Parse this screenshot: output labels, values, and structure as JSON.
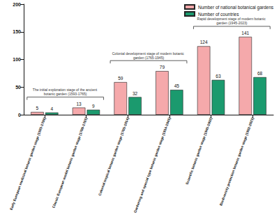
{
  "chart_data": {
    "type": "bar",
    "categories": [
      "Early European medicinal botanic garden stage (1593-1700)",
      "Classic European model botanic garden stage (1700-1765)",
      "Colonial tropical botanic garden stage (1765-1914)",
      "Gardening and special type botanic garden stage (1914-1945)",
      "Scientific botanic garden stage (1945-1992)",
      "Biodiversity protection botanic garden stage (1992-2023)"
    ],
    "series": [
      {
        "name": "Number of national botanical gardens",
        "color": "#f5a9ab",
        "values": [
          5,
          13,
          59,
          79,
          124,
          141
        ]
      },
      {
        "name": "Number of countries",
        "color": "#1b9a6e",
        "values": [
          4,
          9,
          32,
          45,
          63,
          68
        ]
      }
    ],
    "ylim": [
      0,
      200
    ],
    "yticks": [
      0,
      50,
      100,
      150,
      200
    ],
    "grid": false,
    "legend": "top-right",
    "data_labels": true,
    "annotations": [
      {
        "text": "The initial exploration stage of the ancient botanic garden (1593-1765)",
        "categories": [
          "Early European medicinal botanic garden stage (1593-1700)",
          "Classic European model botanic garden stage (1700-1765)"
        ]
      },
      {
        "text": "Colonial development stage of modern botanic garden (1765-1945)",
        "categories": [
          "Colonial tropical botanic garden stage (1765-1914)",
          "Gardening and special type botanic garden stage (1914-1945)"
        ]
      },
      {
        "text": "Rapid development stage of modern botanic garden (1945-2023)",
        "categories": [
          "Scientific botanic garden stage (1945-1992)",
          "Biodiversity protection botanic garden stage (1992-2023)"
        ]
      }
    ]
  }
}
